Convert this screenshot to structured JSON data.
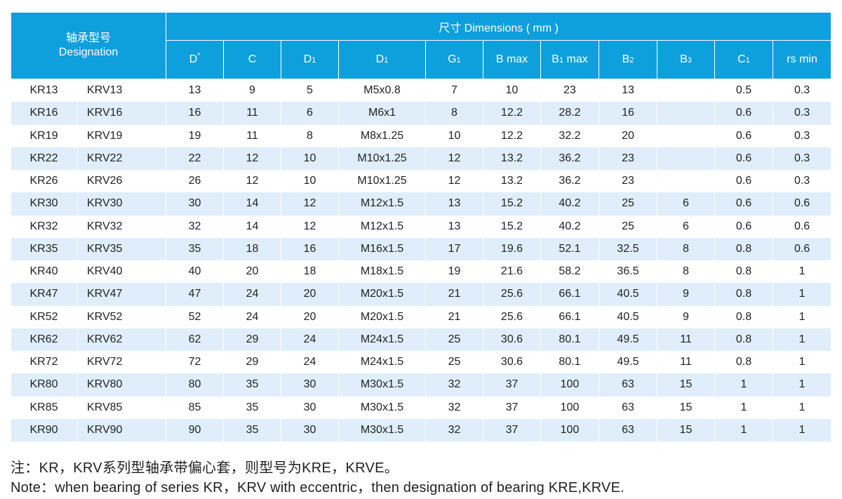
{
  "header": {
    "designation_cn": "轴承型号",
    "designation_en": "Designation",
    "dimensions": "尺寸 Dimensions ( mm )",
    "columns": [
      {
        "base": "D",
        "sub": "",
        "sup": "*"
      },
      {
        "base": "C",
        "sub": "",
        "sup": ""
      },
      {
        "base": "D",
        "sub": "1",
        "sup": ""
      },
      {
        "base": "D",
        "sub": "1",
        "sup": ""
      },
      {
        "base": "G",
        "sub": "1",
        "sup": ""
      },
      {
        "base": "B max",
        "sub": "",
        "sup": ""
      },
      {
        "base": "B",
        "sub": "1",
        "sup": "",
        "tail": " max"
      },
      {
        "base": "B",
        "sub": "2",
        "sup": ""
      },
      {
        "base": "B",
        "sub": "3",
        "sup": ""
      },
      {
        "base": "C",
        "sub": "1",
        "sup": ""
      },
      {
        "base": "rs min",
        "sub": "",
        "sup": ""
      }
    ]
  },
  "rows": [
    [
      "KR13",
      "KRV13",
      "13",
      "9",
      "5",
      "M5x0.8",
      "7",
      "10",
      "23",
      "13",
      "",
      "0.5",
      "0.3"
    ],
    [
      "KR16",
      "KRV16",
      "16",
      "11",
      "6",
      "M6x1",
      "8",
      "12.2",
      "28.2",
      "16",
      "",
      "0.6",
      "0.3"
    ],
    [
      "KR19",
      "KRV19",
      "19",
      "11",
      "8",
      "M8x1.25",
      "10",
      "12.2",
      "32.2",
      "20",
      "",
      "0.6",
      "0.3"
    ],
    [
      "KR22",
      "KRV22",
      "22",
      "12",
      "10",
      "M10x1.25",
      "12",
      "13.2",
      "36.2",
      "23",
      "",
      "0.6",
      "0.3"
    ],
    [
      "KR26",
      "KRV26",
      "26",
      "12",
      "10",
      "M10x1.25",
      "12",
      "13.2",
      "36.2",
      "23",
      "",
      "0.6",
      "0.3"
    ],
    [
      "KR30",
      "KRV30",
      "30",
      "14",
      "12",
      "M12x1.5",
      "13",
      "15.2",
      "40.2",
      "25",
      "6",
      "0.6",
      "0.6"
    ],
    [
      "KR32",
      "KRV32",
      "32",
      "14",
      "12",
      "M12x1.5",
      "13",
      "15.2",
      "40.2",
      "25",
      "6",
      "0.6",
      "0.6"
    ],
    [
      "KR35",
      "KRV35",
      "35",
      "18",
      "16",
      "M16x1.5",
      "17",
      "19.6",
      "52.1",
      "32.5",
      "8",
      "0.8",
      "0.6"
    ],
    [
      "KR40",
      "KRV40",
      "40",
      "20",
      "18",
      "M18x1.5",
      "19",
      "21.6",
      "58.2",
      "36.5",
      "8",
      "0.8",
      "1"
    ],
    [
      "KR47",
      "KRV47",
      "47",
      "24",
      "20",
      "M20x1.5",
      "21",
      "25.6",
      "66.1",
      "40.5",
      "9",
      "0.8",
      "1"
    ],
    [
      "KR52",
      "KRV52",
      "52",
      "24",
      "20",
      "M20x1.5",
      "21",
      "25.6",
      "66.1",
      "40.5",
      "9",
      "0.8",
      "1"
    ],
    [
      "KR62",
      "KRV62",
      "62",
      "29",
      "24",
      "M24x1.5",
      "25",
      "30.6",
      "80.1",
      "49.5",
      "11",
      "0.8",
      "1"
    ],
    [
      "KR72",
      "KRV72",
      "72",
      "29",
      "24",
      "M24x1.5",
      "25",
      "30.6",
      "80.1",
      "49.5",
      "11",
      "0.8",
      "1"
    ],
    [
      "KR80",
      "KRV80",
      "80",
      "35",
      "30",
      "M30x1.5",
      "32",
      "37",
      "100",
      "63",
      "15",
      "1",
      "1"
    ],
    [
      "KR85",
      "KRV85",
      "85",
      "35",
      "30",
      "M30x1.5",
      "32",
      "37",
      "100",
      "63",
      "15",
      "1",
      "1"
    ],
    [
      "KR90",
      "KRV90",
      "90",
      "35",
      "30",
      "M30x1.5",
      "32",
      "37",
      "100",
      "63",
      "15",
      "1",
      "1"
    ]
  ],
  "notes": {
    "cn": "注：KR，KRV系列型轴承带偏心套，则型号为KRE，KRVE。",
    "en": "Note：when bearing of series KR，KRV with eccentric，then designation of bearing KRE,KRVE."
  },
  "colors": {
    "header_bg": "#0e9fdd",
    "header_text": "#ffffff",
    "stripe_bg": "#dfeefa"
  }
}
